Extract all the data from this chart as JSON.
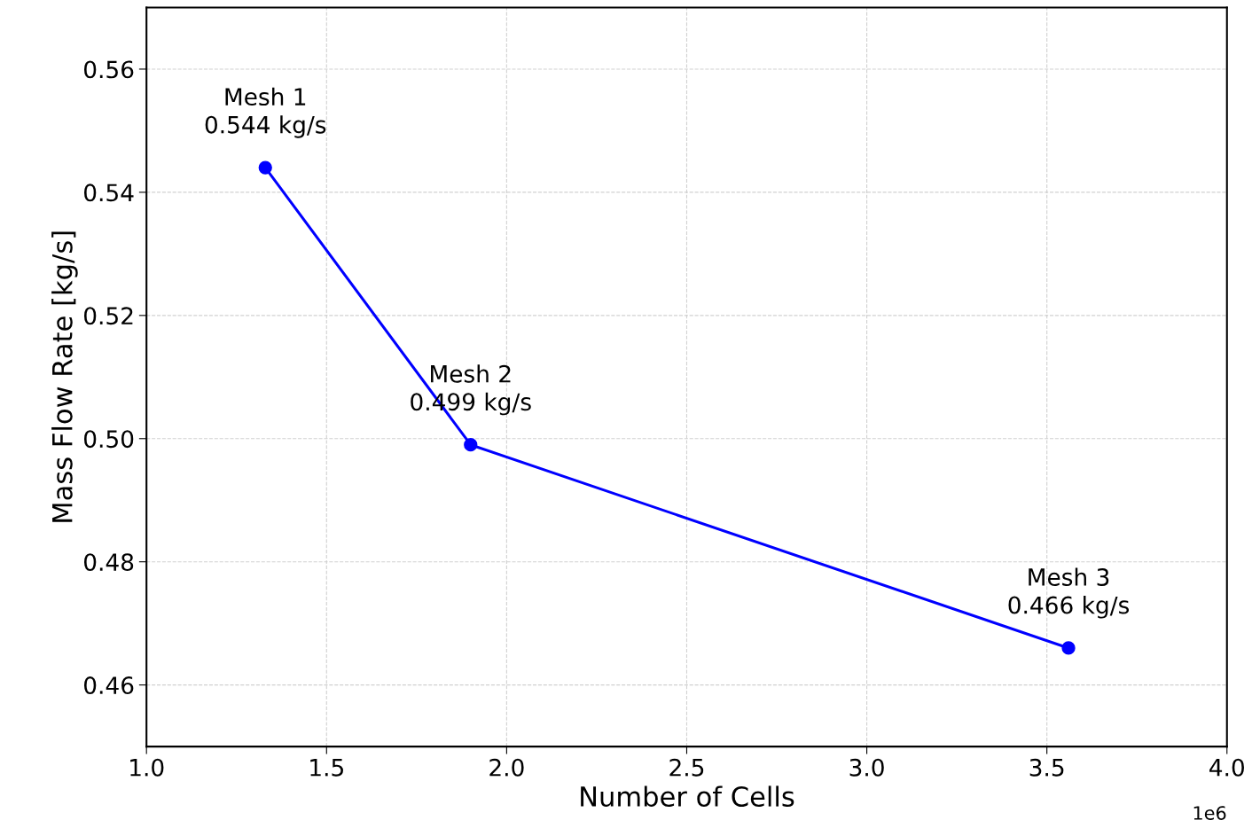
{
  "chart_data": {
    "type": "line",
    "xlabel": "Number of Cells",
    "ylabel": "Mass Flow Rate [kg/s]",
    "x": [
      1.33,
      1.9,
      3.56
    ],
    "series": [
      {
        "color": "#0000ff",
        "values": [
          0.544,
          0.499,
          0.466
        ]
      }
    ],
    "marker": "circle",
    "line_style": "solid",
    "grid": true,
    "xlim": [
      1.0,
      4.0
    ],
    "xticks": [
      {
        "value": 1.0,
        "label": "1.0"
      },
      1.5,
      {
        "value": 2.0,
        "label": "2.0"
      },
      2.5,
      {
        "value": 3.0,
        "label": "3.0"
      },
      3.5,
      {
        "value": 4.0,
        "label": "4.0"
      }
    ],
    "ylim": [
      0.45,
      0.57
    ],
    "yticks": [
      {
        "value": 0.46,
        "label": "0.46"
      },
      {
        "value": 0.48,
        "label": "0.48"
      },
      {
        "value": 0.5,
        "label": "0.50"
      },
      {
        "value": 0.52,
        "label": "0.52"
      },
      {
        "value": 0.54,
        "label": "0.54"
      },
      {
        "value": 0.56,
        "label": "0.56"
      }
    ],
    "annotations": [
      {
        "text": "Mesh 1\n0.544 kg/s",
        "x": 1.33,
        "y": 0.544
      },
      {
        "text": "Mesh 2\n0.499 kg/s",
        "x": 1.9,
        "y": 0.499
      },
      {
        "text": "Mesh 3\n0.466 kg/s",
        "x": 3.56,
        "y": 0.466
      },
      "1e6"
    ]
  }
}
